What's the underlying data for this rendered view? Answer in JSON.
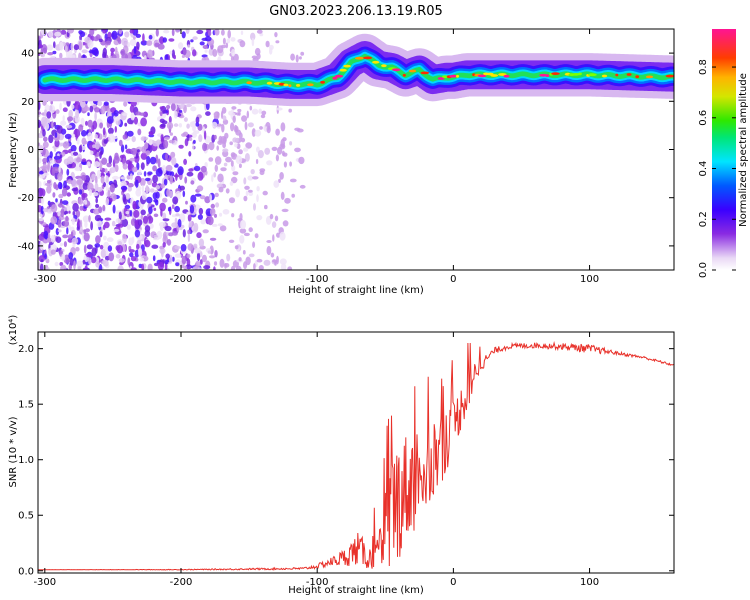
{
  "figure_title": "GN03.2023.206.13.19.R05",
  "chart_data": [
    {
      "type": "heatmap",
      "xlabel": "Height of straight line (km)",
      "ylabel": "Frequency (Hz)",
      "xlim": [
        -305,
        162
      ],
      "ylim": [
        -50,
        50
      ],
      "xticks": [
        -300,
        -200,
        -100,
        0,
        100
      ],
      "yticks": [
        -40,
        -20,
        0,
        20,
        40
      ],
      "colorbar": {
        "label": "Normalized spectral amplitude",
        "range": [
          0.0,
          0.95
        ],
        "ticks": [
          0.0,
          0.2,
          0.4,
          0.6,
          0.8
        ],
        "colormap": "rainbow (purple-blue-cyan-green-yellow-red-magenta)"
      },
      "ridge": {
        "x": [
          -300,
          -250,
          -200,
          -150,
          -120,
          -100,
          -85,
          -75,
          -65,
          -55,
          -45,
          -35,
          -25,
          -15,
          -5,
          0,
          10,
          50,
          100,
          162
        ],
        "frequency": [
          29,
          29,
          28,
          28,
          27,
          27,
          30,
          36,
          39,
          35,
          34,
          31,
          33,
          29,
          30,
          30,
          31,
          31,
          31,
          30
        ]
      },
      "noise_region_x": [
        -305,
        -118
      ]
    },
    {
      "type": "line",
      "xlabel": "Height of straight line (km)",
      "ylabel": "SNR (10 * v/v)",
      "y_multiplier": "(x10⁴)",
      "xlim": [
        -305,
        162
      ],
      "ylim": [
        -0.02,
        2.15
      ],
      "xticks": [
        -300,
        -200,
        -100,
        0,
        100
      ],
      "yticks": [
        0.0,
        0.5,
        1.0,
        1.5,
        2.0
      ],
      "series": [
        {
          "color": "#e8312a",
          "x": [
            -305,
            -200,
            -110,
            -100,
            -90,
            -80,
            -70,
            -60,
            -55,
            -50,
            -45,
            -40,
            -35,
            -30,
            -25,
            -20,
            -15,
            -10,
            -5,
            0,
            5,
            10,
            15,
            20,
            30,
            40,
            60,
            80,
            100,
            120,
            140,
            162
          ],
          "values": [
            0.01,
            0.01,
            0.02,
            0.04,
            0.08,
            0.12,
            0.2,
            0.1,
            0.05,
            0.3,
            0.55,
            0.65,
            0.75,
            0.8,
            0.9,
            0.95,
            1.0,
            1.1,
            1.2,
            1.3,
            1.45,
            1.6,
            1.75,
            1.85,
            1.98,
            2.02,
            2.03,
            2.02,
            2.0,
            1.96,
            1.92,
            1.85
          ],
          "noise_amp": [
            0.0,
            0.003,
            0.01,
            0.02,
            0.04,
            0.08,
            0.15,
            0.1,
            0.25,
            0.5,
            0.6,
            0.55,
            0.5,
            0.5,
            0.45,
            0.45,
            0.4,
            0.35,
            0.3,
            0.25,
            0.2,
            0.18,
            0.12,
            0.06,
            0.03,
            0.025,
            0.025,
            0.03,
            0.04,
            0.015,
            0.012,
            0.01
          ]
        }
      ]
    }
  ]
}
